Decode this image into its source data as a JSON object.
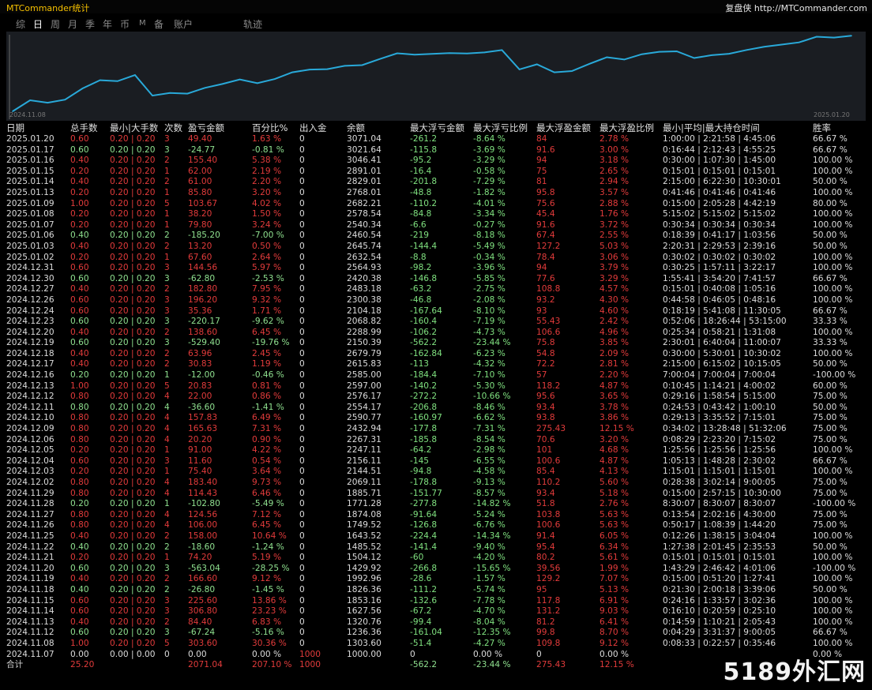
{
  "app": {
    "title": "MTCommander统计",
    "brand": "复盘侠 http://MTCommander.com"
  },
  "tabs": [
    "综",
    "日",
    "周",
    "月",
    "季",
    "年",
    "币",
    "M",
    "备",
    "账户",
    "轨迹"
  ],
  "chart_data": {
    "type": "line",
    "x_start": "2024.11.08",
    "x_end": "2025.01.20",
    "x": [
      "2024.11.07",
      "2024.11.08",
      "2024.11.12",
      "2024.11.13",
      "2024.11.14",
      "2024.11.15",
      "2024.11.18",
      "2024.11.19",
      "2024.11.20",
      "2024.11.21",
      "2024.11.22",
      "2024.11.25",
      "2024.11.26",
      "2024.11.27",
      "2024.11.28",
      "2024.11.29",
      "2024.12.02",
      "2024.12.03",
      "2024.12.04",
      "2024.12.05",
      "2024.12.06",
      "2024.12.09",
      "2024.12.10",
      "2024.12.11",
      "2024.12.12",
      "2024.12.13",
      "2024.12.16",
      "2024.12.17",
      "2024.12.18",
      "2024.12.19",
      "2024.12.20",
      "2024.12.23",
      "2024.12.24",
      "2024.12.26",
      "2024.12.27",
      "2024.12.30",
      "2024.12.31",
      "2025.01.02",
      "2025.01.03",
      "2025.01.06",
      "2025.01.07",
      "2025.01.08",
      "2025.01.09",
      "2025.01.13",
      "2025.01.14",
      "2025.01.15",
      "2025.01.16",
      "2025.01.17",
      "2025.01.20"
    ],
    "values": [
      1000.0,
      1303.6,
      1236.36,
      1320.76,
      1627.56,
      1853.16,
      1826.36,
      1992.96,
      1429.92,
      1504.12,
      1485.52,
      1643.52,
      1749.52,
      1874.08,
      1771.28,
      1885.71,
      2069.11,
      2144.51,
      2156.11,
      2247.11,
      2267.31,
      2432.94,
      2590.77,
      2554.17,
      2576.17,
      2597.0,
      2585.0,
      2615.83,
      2679.79,
      2150.39,
      2288.99,
      2068.82,
      2104.18,
      2300.38,
      2483.18,
      2420.38,
      2564.93,
      2632.54,
      2645.74,
      2460.54,
      2540.34,
      2578.54,
      2682.21,
      2768.01,
      2829.01,
      2891.01,
      3046.41,
      3021.64,
      3071.04
    ],
    "ylim": [
      1000,
      3100
    ],
    "line_color": "#29a9d9",
    "grid": false
  },
  "table": {
    "headers": [
      "日期",
      "总手数",
      "最小|大手数",
      "次数",
      "盈亏金额",
      "百分比%",
      "出入金",
      "余额",
      "最大浮亏金额",
      "最大浮亏比例",
      "最大浮盈金额",
      "最大浮盈比例",
      "最小|平均|最大持仓时间",
      "胜率"
    ],
    "rows": [
      [
        "2025.01.20",
        "0.60",
        "0.20 | 0.20",
        "3",
        "49.40",
        "1.63 %",
        "0",
        "3071.04",
        "-261.2",
        "-8.64 %",
        "84",
        "2.78 %",
        "1:00:00 | 2:21:58 | 4:45:06",
        "66.67 %"
      ],
      [
        "2025.01.17",
        "0.60",
        "0.20 | 0.20",
        "3",
        "-24.77",
        "-0.81 %",
        "0",
        "3021.64",
        "-115.8",
        "-3.69 %",
        "91.6",
        "3.00 %",
        "0:16:44 | 2:12:43 | 4:55:25",
        "66.67 %"
      ],
      [
        "2025.01.16",
        "0.40",
        "0.20 | 0.20",
        "2",
        "155.40",
        "5.38 %",
        "0",
        "3046.41",
        "-95.2",
        "-3.29 %",
        "94",
        "3.18 %",
        "0:30:00 | 1:07:30 | 1:45:00",
        "100.00 %"
      ],
      [
        "2025.01.15",
        "0.20",
        "0.20 | 0.20",
        "1",
        "62.00",
        "2.19 %",
        "0",
        "2891.01",
        "-16.4",
        "-0.58 %",
        "75",
        "2.65 %",
        "0:15:01 | 0:15:01 | 0:15:01",
        "100.00 %"
      ],
      [
        "2025.01.14",
        "0.40",
        "0.20 | 0.20",
        "2",
        "61.00",
        "2.20 %",
        "0",
        "2829.01",
        "-201.8",
        "-7.29 %",
        "81",
        "2.94 %",
        "2:15:00 | 6:22:30 | 10:30:01",
        "50.00 %"
      ],
      [
        "2025.01.13",
        "0.20",
        "0.20 | 0.20",
        "1",
        "85.80",
        "3.20 %",
        "0",
        "2768.01",
        "-48.8",
        "-1.82 %",
        "95.8",
        "3.57 %",
        "0:41:46 | 0:41:46 | 0:41:46",
        "100.00 %"
      ],
      [
        "2025.01.09",
        "1.00",
        "0.20 | 0.20",
        "5",
        "103.67",
        "4.02 %",
        "0",
        "2682.21",
        "-110.2",
        "-4.01 %",
        "75.6",
        "2.88 %",
        "0:15:00 | 2:05:28 | 4:42:19",
        "80.00 %"
      ],
      [
        "2025.01.08",
        "0.20",
        "0.20 | 0.20",
        "1",
        "38.20",
        "1.50 %",
        "0",
        "2578.54",
        "-84.8",
        "-3.34 %",
        "45.4",
        "1.76 %",
        "5:15:02 | 5:15:02 | 5:15:02",
        "100.00 %"
      ],
      [
        "2025.01.07",
        "0.20",
        "0.20 | 0.20",
        "1",
        "79.80",
        "3.24 %",
        "0",
        "2540.34",
        "-6.6",
        "-0.27 %",
        "91.6",
        "3.72 %",
        "0:30:34 | 0:30:34 | 0:30:34",
        "100.00 %"
      ],
      [
        "2025.01.06",
        "0.40",
        "0.20 | 0.20",
        "2",
        "-185.20",
        "-7.00 %",
        "0",
        "2460.54",
        "-219",
        "-8.18 %",
        "67.4",
        "2.55 %",
        "0:18:39 | 0:41:17 | 1:03:56",
        "50.00 %"
      ],
      [
        "2025.01.03",
        "0.40",
        "0.20 | 0.20",
        "2",
        "13.20",
        "0.50 %",
        "0",
        "2645.74",
        "-144.4",
        "-5.49 %",
        "127.2",
        "5.03 %",
        "2:20:31 | 2:29:53 | 2:39:16",
        "50.00 %"
      ],
      [
        "2025.01.02",
        "0.20",
        "0.20 | 0.20",
        "1",
        "67.60",
        "2.64 %",
        "0",
        "2632.54",
        "-8.8",
        "-0.34 %",
        "78.4",
        "3.06 %",
        "0:30:02 | 0:30:02 | 0:30:02",
        "100.00 %"
      ],
      [
        "2024.12.31",
        "0.60",
        "0.20 | 0.20",
        "3",
        "144.56",
        "5.97 %",
        "0",
        "2564.93",
        "-98.2",
        "-3.96 %",
        "94",
        "3.79 %",
        "0:30:25 | 1:57:11 | 3:22:17",
        "100.00 %"
      ],
      [
        "2024.12.30",
        "0.60",
        "0.20 | 0.20",
        "3",
        "-62.80",
        "-2.53 %",
        "0",
        "2420.38",
        "-146.8",
        "-5.85 %",
        "77.6",
        "3.29 %",
        "1:55:41 | 3:54:20 | 7:41:57",
        "66.67 %"
      ],
      [
        "2024.12.27",
        "0.40",
        "0.20 | 0.20",
        "2",
        "182.80",
        "7.95 %",
        "0",
        "2483.18",
        "-63.2",
        "-2.75 %",
        "108.8",
        "4.57 %",
        "0:15:01 | 0:40:08 | 1:05:16",
        "100.00 %"
      ],
      [
        "2024.12.26",
        "0.60",
        "0.20 | 0.20",
        "3",
        "196.20",
        "9.32 %",
        "0",
        "2300.38",
        "-46.8",
        "-2.08 %",
        "93.2",
        "4.30 %",
        "0:44:58 | 0:46:05 | 0:48:16",
        "100.00 %"
      ],
      [
        "2024.12.24",
        "0.60",
        "0.20 | 0.20",
        "3",
        "35.36",
        "1.71 %",
        "0",
        "2104.18",
        "-167.64",
        "-8.10 %",
        "93",
        "4.60 %",
        "0:18:19 | 5:41:08 | 11:30:05",
        "66.67 %"
      ],
      [
        "2024.12.23",
        "0.60",
        "0.20 | 0.20",
        "3",
        "-220.17",
        "-9.62 %",
        "0",
        "2068.82",
        "-160.4",
        "-7.19 %",
        "55.43",
        "2.42 %",
        "0:52:06 | 18:26:44 | 53:15:00",
        "33.33 %"
      ],
      [
        "2024.12.20",
        "0.40",
        "0.20 | 0.20",
        "2",
        "138.60",
        "6.45 %",
        "0",
        "2288.99",
        "-106.2",
        "-4.73 %",
        "106.6",
        "4.96 %",
        "0:25:34 | 0:58:21 | 1:31:08",
        "100.00 %"
      ],
      [
        "2024.12.19",
        "0.60",
        "0.20 | 0.20",
        "3",
        "-529.40",
        "-19.76 %",
        "0",
        "2150.39",
        "-562.2",
        "-23.44 %",
        "75.8",
        "3.85 %",
        "2:30:01 | 6:40:04 | 11:00:07",
        "33.33 %"
      ],
      [
        "2024.12.18",
        "0.40",
        "0.20 | 0.20",
        "2",
        "63.96",
        "2.45 %",
        "0",
        "2679.79",
        "-162.84",
        "-6.23 %",
        "54.8",
        "2.09 %",
        "0:30:00 | 5:30:01 | 10:30:02",
        "100.00 %"
      ],
      [
        "2024.12.17",
        "0.40",
        "0.20 | 0.20",
        "2",
        "30.83",
        "1.19 %",
        "0",
        "2615.83",
        "-113",
        "-4.32 %",
        "72.2",
        "2.81 %",
        "2:15:00 | 6:15:02 | 10:15:05",
        "50.00 %"
      ],
      [
        "2024.12.16",
        "0.20",
        "0.20 | 0.20",
        "1",
        "-12.00",
        "-0.46 %",
        "0",
        "2585.00",
        "-184.4",
        "-7.10 %",
        "57",
        "2.20 %",
        "7:00:04 | 7:00:04 | 7:00:04",
        "-100.00 %"
      ],
      [
        "2024.12.13",
        "1.00",
        "0.20 | 0.20",
        "5",
        "20.83",
        "0.81 %",
        "0",
        "2597.00",
        "-140.2",
        "-5.30 %",
        "118.2",
        "4.87 %",
        "0:10:45 | 1:14:21 | 4:00:02",
        "60.00 %"
      ],
      [
        "2024.12.12",
        "0.80",
        "0.20 | 0.20",
        "4",
        "22.00",
        "0.86 %",
        "0",
        "2576.17",
        "-272.2",
        "-10.66 %",
        "95.6",
        "3.65 %",
        "0:29:16 | 1:58:54 | 5:15:00",
        "75.00 %"
      ],
      [
        "2024.12.11",
        "0.80",
        "0.20 | 0.20",
        "4",
        "-36.60",
        "-1.41 %",
        "0",
        "2554.17",
        "-206.8",
        "-8.46 %",
        "93.4",
        "3.78 %",
        "0:24:53 | 0:43:42 | 1:00:10",
        "50.00 %"
      ],
      [
        "2024.12.10",
        "0.80",
        "0.20 | 0.20",
        "4",
        "157.83",
        "6.49 %",
        "0",
        "2590.77",
        "-160.97",
        "-6.62 %",
        "93.8",
        "3.86 %",
        "0:29:13 | 3:35:52 | 7:15:01",
        "75.00 %"
      ],
      [
        "2024.12.09",
        "0.80",
        "0.20 | 0.20",
        "4",
        "165.63",
        "7.31 %",
        "0",
        "2432.94",
        "-177.8",
        "-7.31 %",
        "275.43",
        "12.15 %",
        "0:34:02 | 13:28:48 | 51:32:06",
        "75.00 %"
      ],
      [
        "2024.12.06",
        "0.80",
        "0.20 | 0.20",
        "4",
        "20.20",
        "0.90 %",
        "0",
        "2267.31",
        "-185.8",
        "-8.54 %",
        "70.6",
        "3.20 %",
        "0:08:29 | 2:23:20 | 7:15:02",
        "75.00 %"
      ],
      [
        "2024.12.05",
        "0.20",
        "0.20 | 0.20",
        "1",
        "91.00",
        "4.22 %",
        "0",
        "2247.11",
        "-64.2",
        "-2.98 %",
        "101",
        "4.68 %",
        "1:25:56 | 1:25:56 | 1:25:56",
        "100.00 %"
      ],
      [
        "2024.12.04",
        "0.60",
        "0.20 | 0.20",
        "3",
        "11.60",
        "0.54 %",
        "0",
        "2156.11",
        "-145",
        "-6.55 %",
        "100.6",
        "4.87 %",
        "1:05:13 | 1:48:28 | 2:30:02",
        "66.67 %"
      ],
      [
        "2024.12.03",
        "0.20",
        "0.20 | 0.20",
        "1",
        "75.40",
        "3.64 %",
        "0",
        "2144.51",
        "-94.8",
        "-4.58 %",
        "85.4",
        "4.13 %",
        "1:15:01 | 1:15:01 | 1:15:01",
        "100.00 %"
      ],
      [
        "2024.12.02",
        "0.80",
        "0.20 | 0.20",
        "4",
        "183.40",
        "9.73 %",
        "0",
        "2069.11",
        "-178.8",
        "-9.13 %",
        "110.2",
        "5.60 %",
        "0:28:38 | 3:02:14 | 9:00:05",
        "75.00 %"
      ],
      [
        "2024.11.29",
        "0.80",
        "0.20 | 0.20",
        "4",
        "114.43",
        "6.46 %",
        "0",
        "1885.71",
        "-151.77",
        "-8.57 %",
        "93.4",
        "5.18 %",
        "0:15:00 | 2:57:15 | 10:30:00",
        "75.00 %"
      ],
      [
        "2024.11.28",
        "0.20",
        "0.20 | 0.20",
        "1",
        "-102.80",
        "-5.49 %",
        "0",
        "1771.28",
        "-277.8",
        "-14.82 %",
        "51.8",
        "2.76 %",
        "8:30:07 | 8:30:07 | 8:30:07",
        "-100.00 %"
      ],
      [
        "2024.11.27",
        "0.80",
        "0.20 | 0.20",
        "4",
        "124.56",
        "7.12 %",
        "0",
        "1874.08",
        "-91.64",
        "-5.24 %",
        "103.8",
        "5.63 %",
        "0:13:54 | 2:02:16 | 4:30:00",
        "75.00 %"
      ],
      [
        "2024.11.26",
        "0.80",
        "0.20 | 0.20",
        "4",
        "106.00",
        "6.45 %",
        "0",
        "1749.52",
        "-126.8",
        "-6.76 %",
        "100.6",
        "5.63 %",
        "0:50:17 | 1:08:39 | 1:44:20",
        "75.00 %"
      ],
      [
        "2024.11.25",
        "0.40",
        "0.20 | 0.20",
        "2",
        "158.00",
        "10.64 %",
        "0",
        "1643.52",
        "-224.4",
        "-14.34 %",
        "91.4",
        "6.05 %",
        "0:12:26 | 1:38:15 | 3:04:04",
        "100.00 %"
      ],
      [
        "2024.11.22",
        "0.40",
        "0.20 | 0.20",
        "2",
        "-18.60",
        "-1.24 %",
        "0",
        "1485.52",
        "-141.4",
        "-9.40 %",
        "95.4",
        "6.34 %",
        "1:27:38 | 2:01:45 | 2:35:53",
        "50.00 %"
      ],
      [
        "2024.11.21",
        "0.20",
        "0.20 | 0.20",
        "1",
        "74.20",
        "5.19 %",
        "0",
        "1504.12",
        "-60",
        "-4.20 %",
        "80.2",
        "5.61 %",
        "0:15:01 | 0:15:01 | 0:15:01",
        "100.00 %"
      ],
      [
        "2024.11.20",
        "0.60",
        "0.20 | 0.20",
        "3",
        "-563.04",
        "-28.25 %",
        "0",
        "1429.92",
        "-266.8",
        "-15.65 %",
        "39.56",
        "1.99 %",
        "1:43:29 | 2:46:42 | 4:01:06",
        "-100.00 %"
      ],
      [
        "2024.11.19",
        "0.40",
        "0.20 | 0.20",
        "2",
        "166.60",
        "9.12 %",
        "0",
        "1992.96",
        "-28.6",
        "-1.57 %",
        "129.2",
        "7.07 %",
        "0:15:00 | 0:51:20 | 1:27:41",
        "100.00 %"
      ],
      [
        "2024.11.18",
        "0.40",
        "0.20 | 0.20",
        "2",
        "-26.80",
        "-1.45 %",
        "0",
        "1826.36",
        "-111.2",
        "-5.74 %",
        "95",
        "5.13 %",
        "0:21:30 | 2:00:18 | 3:39:06",
        "50.00 %"
      ],
      [
        "2024.11.15",
        "0.60",
        "0.20 | 0.20",
        "3",
        "225.60",
        "13.86 %",
        "0",
        "1853.16",
        "-132.6",
        "-7.78 %",
        "117.8",
        "6.91 %",
        "0:24:16 | 1:33:57 | 3:02:36",
        "100.00 %"
      ],
      [
        "2024.11.14",
        "0.60",
        "0.20 | 0.20",
        "3",
        "306.80",
        "23.23 %",
        "0",
        "1627.56",
        "-67.2",
        "-4.70 %",
        "131.2",
        "9.03 %",
        "0:16:10 | 0:20:59 | 0:25:10",
        "100.00 %"
      ],
      [
        "2024.11.13",
        "0.40",
        "0.20 | 0.20",
        "2",
        "84.40",
        "6.83 %",
        "0",
        "1320.76",
        "-99.4",
        "-8.04 %",
        "81.2",
        "6.41 %",
        "0:14:59 | 1:10:21 | 2:05:43",
        "100.00 %"
      ],
      [
        "2024.11.12",
        "0.60",
        "0.20 | 0.20",
        "3",
        "-67.24",
        "-5.16 %",
        "0",
        "1236.36",
        "-161.04",
        "-12.35 %",
        "99.8",
        "8.70 %",
        "0:04:29 | 3:31:37 | 9:00:05",
        "66.67 %"
      ],
      [
        "2024.11.08",
        "1.00",
        "0.20 | 0.20",
        "5",
        "303.60",
        "30.36 %",
        "0",
        "1303.60",
        "-51.4",
        "-4.27 %",
        "109.8",
        "9.12 %",
        "0:08:33 | 0:22:57 | 0:35:46",
        "100.00 %"
      ],
      [
        "2024.11.07",
        "0.00",
        "0.00 | 0.00",
        "0",
        "0.00",
        "0.00 %",
        "1000",
        "1000.00",
        "0",
        "0.00 %",
        "0",
        "0.00 %",
        "",
        "0.00 %"
      ]
    ],
    "total": [
      "合计",
      "25.20",
      "",
      "",
      "2071.04",
      "207.10 %",
      "1000",
      "",
      "-562.2",
      "-23.44 %",
      "275.43",
      "12.15 %",
      "",
      ""
    ]
  },
  "watermark": "5189外汇网"
}
